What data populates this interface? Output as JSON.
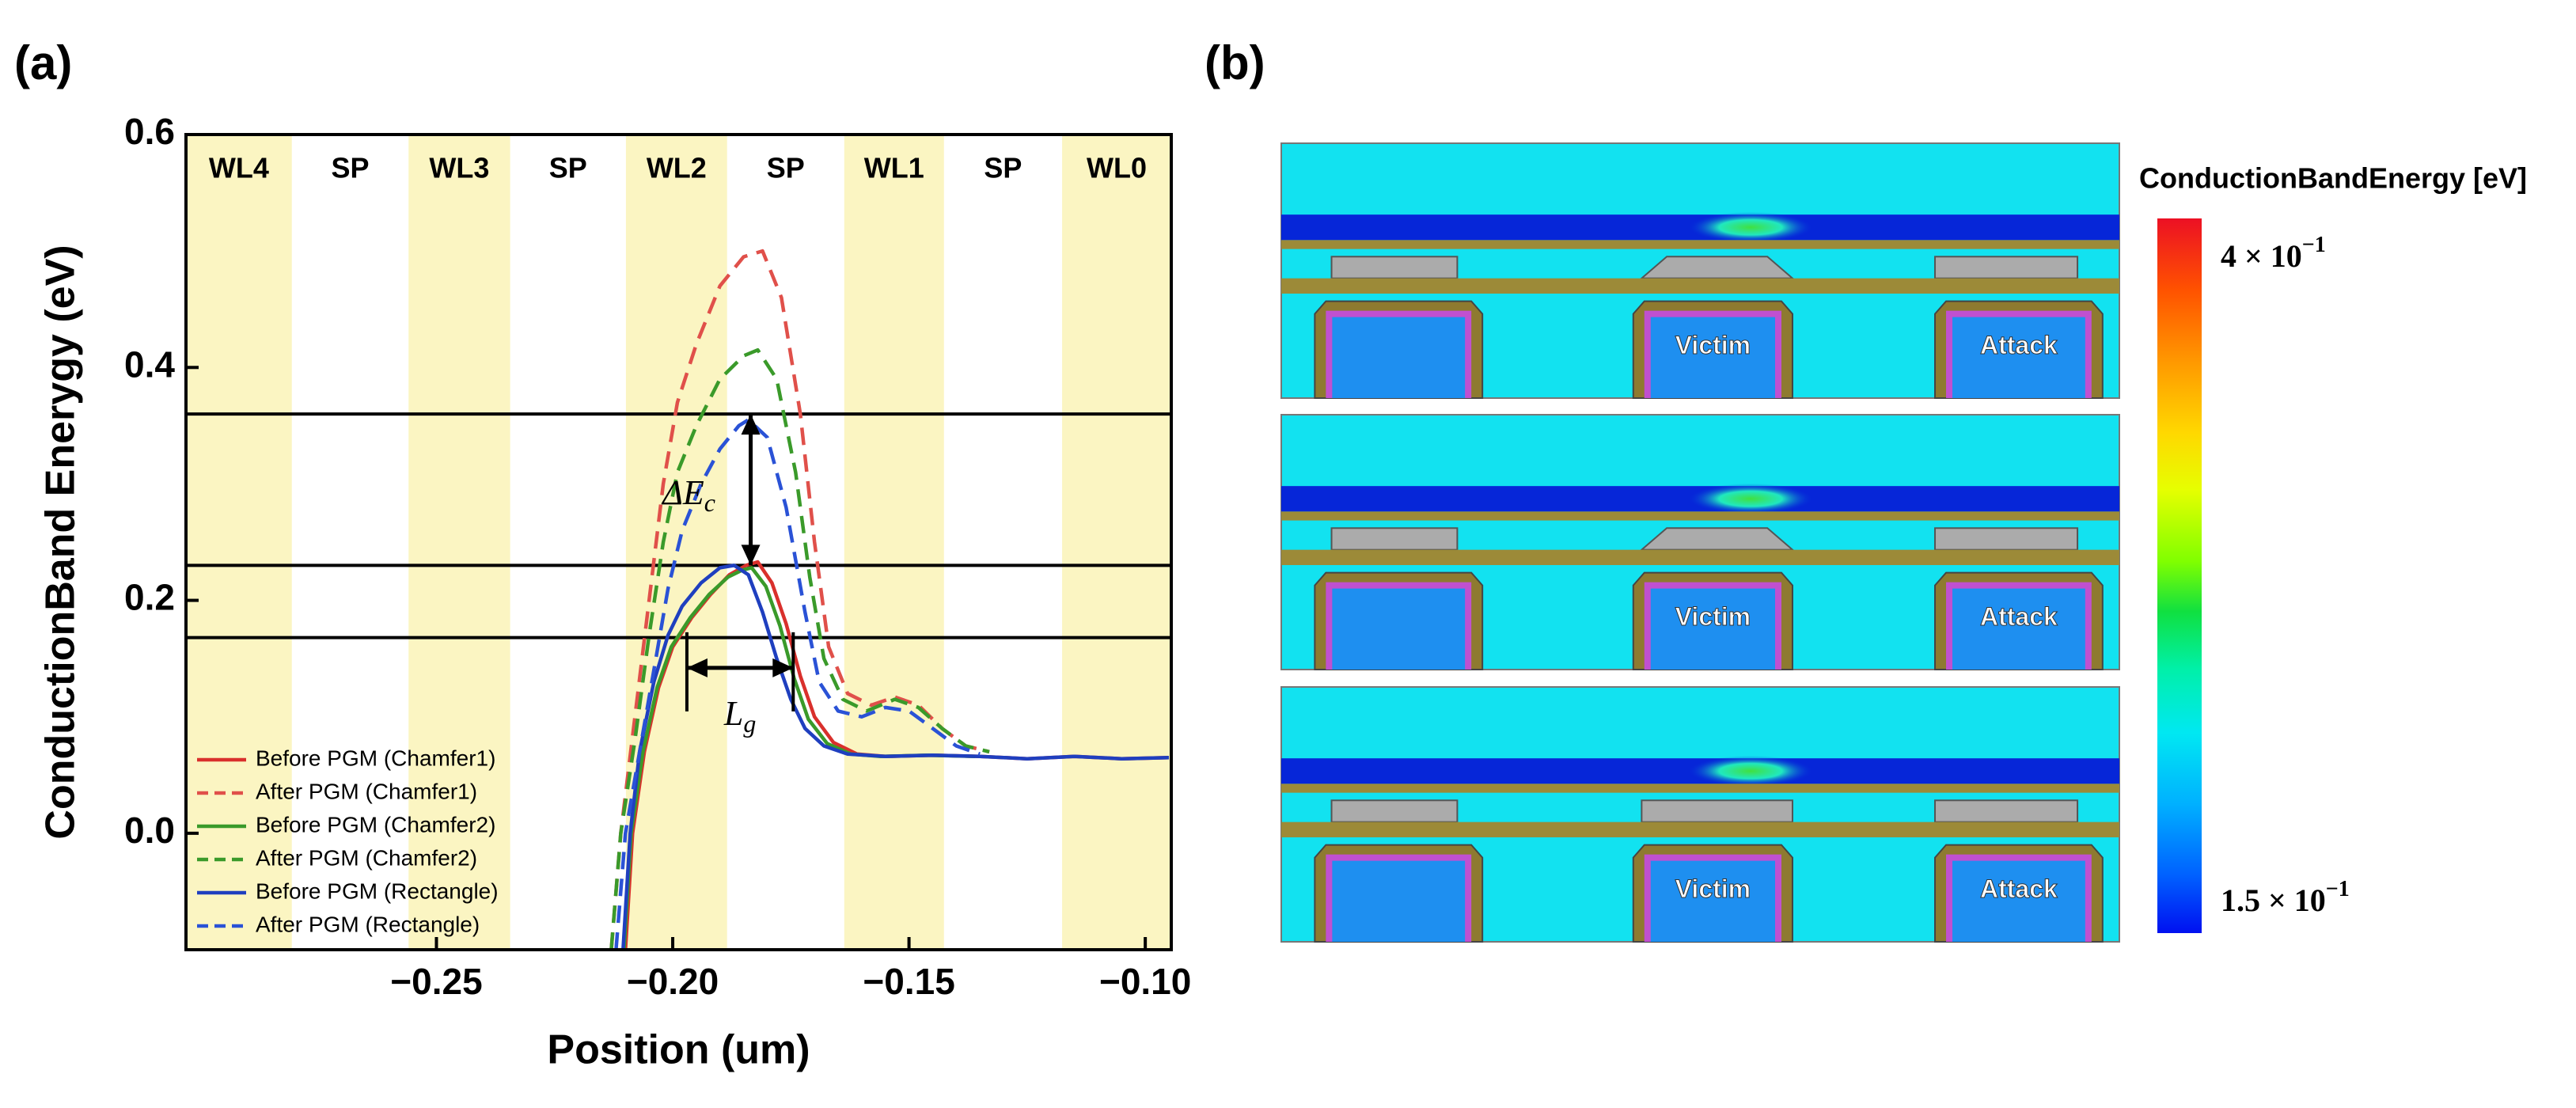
{
  "panel_labels": [
    "(a)",
    "(b)"
  ],
  "chart_data": [
    {
      "type": "line",
      "xlabel": "Position (um)",
      "ylabel": "ConductionBand Enerygy (eV)",
      "xlim": [
        -0.303,
        -0.0945
      ],
      "ylim": [
        -0.1,
        0.6
      ],
      "xticks": [
        {
          "value": -0.25,
          "label": "−0.25"
        },
        {
          "value": -0.2,
          "label": "−0.20"
        },
        {
          "value": -0.15,
          "label": "−0.15"
        },
        {
          "value": -0.1,
          "label": "−0.10"
        }
      ],
      "yticks": [
        {
          "value": 0,
          "label": "0.0"
        },
        0.2,
        0.4,
        0.6
      ],
      "band_color": "#fbf5c2",
      "regions": [
        {
          "label": "WL4",
          "x0": -0.303,
          "x1": -0.2806,
          "shaded": true
        },
        {
          "label": "SP",
          "x0": -0.2806,
          "x1": -0.2559,
          "shaded": false
        },
        {
          "label": "WL3",
          "x0": -0.2559,
          "x1": -0.2344,
          "shaded": true
        },
        {
          "label": "SP",
          "x0": -0.2344,
          "x1": -0.2099,
          "shaded": false
        },
        {
          "label": "WL2",
          "x0": -0.2099,
          "x1": -0.1885,
          "shaded": true
        },
        {
          "label": "SP",
          "x0": -0.1885,
          "x1": -0.1637,
          "shaded": false
        },
        {
          "label": "WL1",
          "x0": -0.1637,
          "x1": -0.1426,
          "shaded": true
        },
        {
          "label": "SP",
          "x0": -0.1426,
          "x1": -0.1176,
          "shaded": false
        },
        {
          "label": "WL0",
          "x0": -0.1176,
          "x1": -0.0945,
          "shaded": true
        }
      ],
      "hlines": [
        0.36,
        0.23,
        0.168
      ],
      "annotations": [
        {
          "text": "ΔE",
          "sub": "c",
          "x": -0.1835,
          "y0": 0.36,
          "y1": 0.23
        },
        {
          "text": "L",
          "sub": "g",
          "y": 0.142,
          "x0": -0.197,
          "x1": -0.1745
        }
      ],
      "legend": "lower left",
      "series": [
        {
          "name": "Before PGM (Chamfer1)",
          "color": "#d9302c",
          "dash": false,
          "x": [
            -0.21,
            -0.2085,
            -0.206,
            -0.203,
            -0.2,
            -0.196,
            -0.192,
            -0.188,
            -0.1845,
            -0.182,
            -0.179,
            -0.176,
            -0.173,
            -0.17,
            -0.166,
            -0.161,
            -0.155,
            -0.145,
            -0.135,
            -0.125,
            -0.115,
            -0.105,
            -0.095
          ],
          "values": [
            -0.1,
            0.0,
            0.07,
            0.125,
            0.16,
            0.185,
            0.205,
            0.222,
            0.23,
            0.233,
            0.215,
            0.18,
            0.135,
            0.1,
            0.078,
            0.068,
            0.066,
            0.067,
            0.066,
            0.064,
            0.066,
            0.064,
            0.065
          ]
        },
        {
          "name": "After PGM (Chamfer1)",
          "color": "#e0504a",
          "dash": true,
          "x": [
            -0.213,
            -0.211,
            -0.208,
            -0.205,
            -0.202,
            -0.199,
            -0.195,
            -0.19,
            -0.185,
            -0.181,
            -0.177,
            -0.173,
            -0.17,
            -0.167,
            -0.163,
            -0.158,
            -0.153,
            -0.148,
            -0.143,
            -0.138,
            -0.133
          ],
          "values": [
            -0.1,
            0.0,
            0.1,
            0.2,
            0.3,
            0.37,
            0.42,
            0.47,
            0.495,
            0.5,
            0.46,
            0.36,
            0.25,
            0.16,
            0.12,
            0.11,
            0.117,
            0.11,
            0.09,
            0.075,
            0.07
          ]
        },
        {
          "name": "Before PGM (Chamfer2)",
          "color": "#3a9a2a",
          "dash": false,
          "x": [
            -0.2103,
            -0.2088,
            -0.2063,
            -0.2033,
            -0.2003,
            -0.1963,
            -0.1923,
            -0.1883,
            -0.1853,
            -0.1833,
            -0.1803,
            -0.1773,
            -0.1743,
            -0.1713,
            -0.1673,
            -0.1623,
            -0.156,
            -0.146,
            -0.136
          ],
          "values": [
            -0.1,
            0.0,
            0.07,
            0.125,
            0.16,
            0.185,
            0.205,
            0.22,
            0.226,
            0.228,
            0.212,
            0.178,
            0.133,
            0.098,
            0.077,
            0.068,
            0.066,
            0.067,
            0.066
          ]
        },
        {
          "name": "After PGM (Chamfer2)",
          "color": "#3a9a2a",
          "dash": true,
          "x": [
            -0.213,
            -0.211,
            -0.208,
            -0.205,
            -0.202,
            -0.199,
            -0.195,
            -0.19,
            -0.185,
            -0.182,
            -0.178,
            -0.174,
            -0.171,
            -0.168,
            -0.164,
            -0.159,
            -0.153,
            -0.148,
            -0.143,
            -0.138,
            -0.133
          ],
          "values": [
            -0.1,
            0.0,
            0.08,
            0.17,
            0.25,
            0.31,
            0.35,
            0.39,
            0.41,
            0.415,
            0.39,
            0.31,
            0.22,
            0.15,
            0.115,
            0.105,
            0.115,
            0.108,
            0.09,
            0.075,
            0.07
          ]
        },
        {
          "name": "Before PGM (Rectangle)",
          "color": "#1f3fbf",
          "dash": false,
          "x": [
            -0.2105,
            -0.209,
            -0.207,
            -0.204,
            -0.201,
            -0.198,
            -0.194,
            -0.19,
            -0.187,
            -0.184,
            -0.181,
            -0.178,
            -0.175,
            -0.172,
            -0.168,
            -0.163,
            -0.155,
            -0.145,
            -0.135,
            -0.125,
            -0.115,
            -0.105,
            -0.095
          ],
          "values": [
            -0.1,
            0.0,
            0.07,
            0.13,
            0.17,
            0.195,
            0.215,
            0.228,
            0.23,
            0.222,
            0.19,
            0.15,
            0.115,
            0.09,
            0.075,
            0.068,
            0.066,
            0.067,
            0.066,
            0.064,
            0.066,
            0.064,
            0.065
          ]
        },
        {
          "name": "After PGM (Rectangle)",
          "color": "#2a52d6",
          "dash": true,
          "x": [
            -0.212,
            -0.21,
            -0.207,
            -0.204,
            -0.201,
            -0.198,
            -0.194,
            -0.19,
            -0.186,
            -0.184,
            -0.18,
            -0.176,
            -0.172,
            -0.169,
            -0.165,
            -0.16,
            -0.155,
            -0.15,
            -0.145,
            -0.14,
            -0.135
          ],
          "values": [
            -0.1,
            0.0,
            0.07,
            0.14,
            0.21,
            0.26,
            0.3,
            0.33,
            0.35,
            0.355,
            0.34,
            0.28,
            0.19,
            0.13,
            0.105,
            0.1,
            0.108,
            0.105,
            0.09,
            0.075,
            0.068
          ]
        }
      ]
    }
  ],
  "panel_b": {
    "colorbar": {
      "title": "ConductionBandEnergy  [eV]",
      "labels": [
        {
          "mantissa": "4 × 10",
          "exponent": "−1"
        },
        {
          "mantissa": "1.5 × 10",
          "exponent": "−1"
        }
      ]
    },
    "structures": [
      {
        "labels": [
          "Victim",
          "Attack"
        ]
      },
      {
        "labels": [
          "Victim",
          "Attack"
        ]
      },
      {
        "labels": [
          "Victim",
          "Attack"
        ]
      }
    ]
  }
}
